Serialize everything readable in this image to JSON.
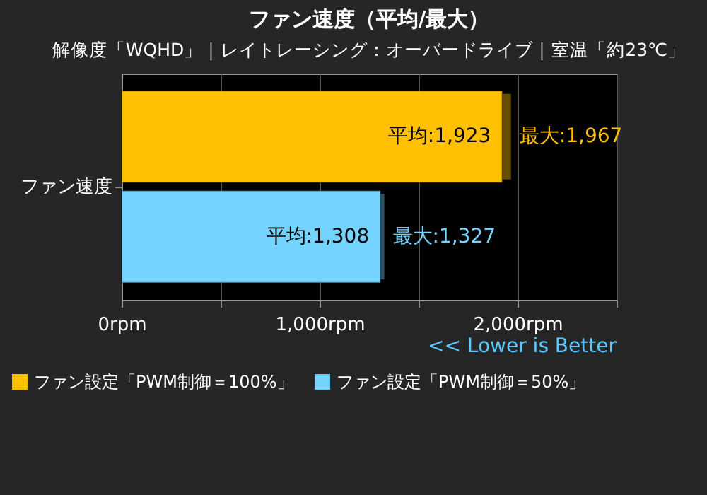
{
  "chart_data": {
    "type": "bar",
    "orientation": "horizontal",
    "title": "ファン速度（平均/最大）",
    "subtitle": "解像度「WQHD」｜レイトレーシング：オーバードライブ｜室温「約23℃」",
    "categories": [
      "ファン速度"
    ],
    "series": [
      {
        "name": "ファン設定「PWM制御＝100%」",
        "color": "#ffc000",
        "values": [
          1923
        ],
        "value_labels": [
          "平均:1,923"
        ],
        "errors": [
          [
            1923,
            1967
          ]
        ]
      },
      {
        "name": "ファン設定「PWM制御＝50%」",
        "color": "#75d3ff",
        "values": [
          1308
        ],
        "value_labels": [
          "平均:1,308"
        ],
        "errors": [
          [
            1308,
            1327
          ]
        ]
      }
    ],
    "annotations": [
      "最大:1,967",
      "最大:1,327",
      "<< Lower is Better"
    ],
    "xlim": [
      0,
      2500
    ],
    "xticks": [
      {
        "value": 0,
        "label": "0rpm"
      },
      {
        "value": 500,
        "label": null
      },
      {
        "value": 1000,
        "label": "1,000rpm"
      },
      {
        "value": 1500,
        "label": null
      },
      {
        "value": 2000,
        "label": "2,000rpm"
      },
      {
        "value": 2500,
        "label": null
      }
    ],
    "grid": "x",
    "legend": "bottom"
  }
}
